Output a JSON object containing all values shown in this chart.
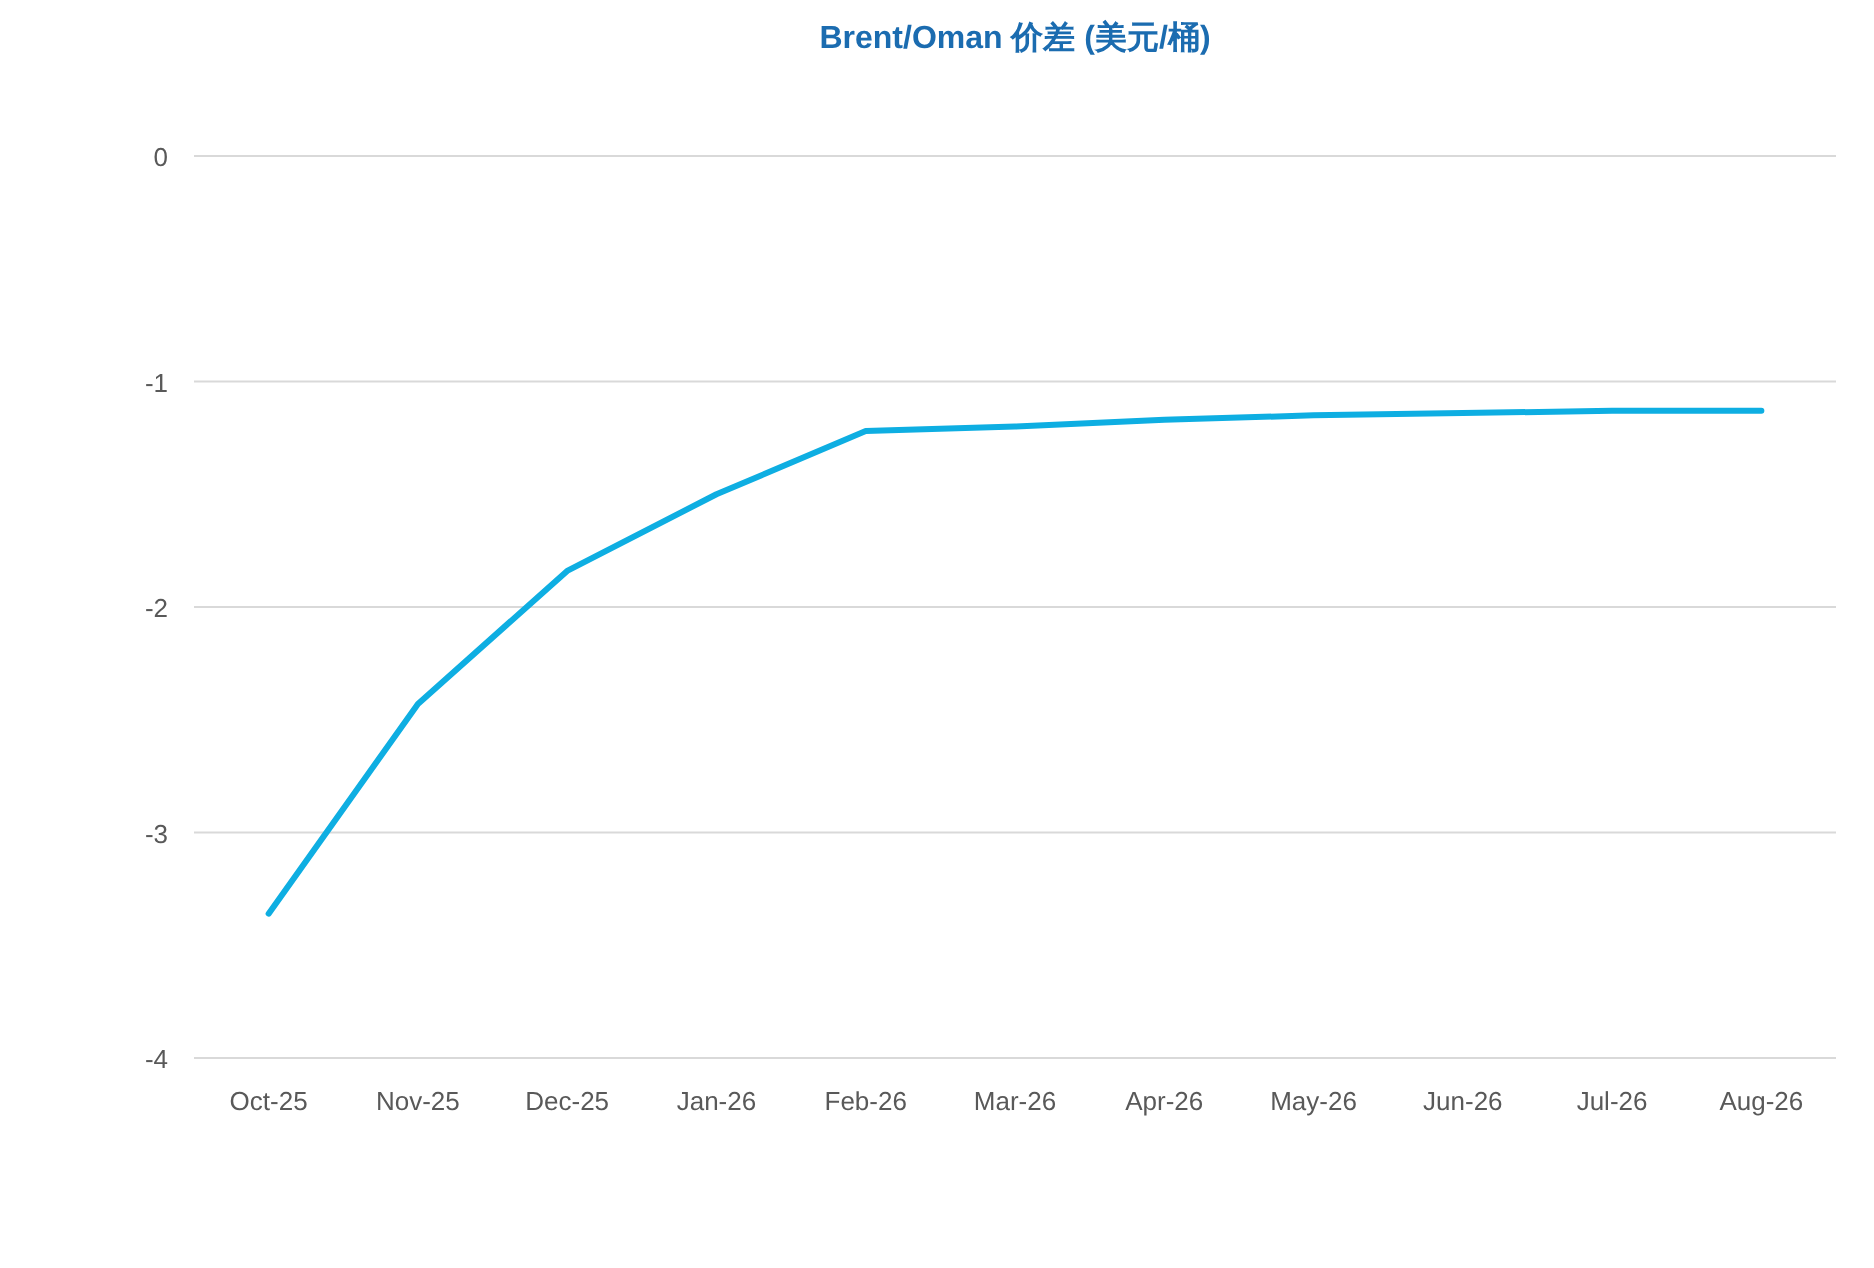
{
  "chart_data": {
    "type": "line",
    "title": "Brent/Oman 价差 (美元/桶)",
    "categories": [
      "Oct-25",
      "Nov-25",
      "Dec-25",
      "Jan-26",
      "Feb-26",
      "Mar-26",
      "Apr-26",
      "May-26",
      "Jun-26",
      "Jul-26",
      "Aug-26"
    ],
    "series": [
      {
        "color": "#0eaee2",
        "values": [
          -3.36,
          -2.43,
          -1.84,
          -1.5,
          -1.22,
          -1.2,
          -1.17,
          -1.15,
          -1.14,
          -1.13,
          -1.13
        ]
      }
    ],
    "ylim": [
      -4,
      0
    ],
    "yticks": [
      -4,
      -3,
      -2,
      -1,
      0
    ],
    "grid": "y",
    "marker": "none",
    "line_style": "solid"
  }
}
